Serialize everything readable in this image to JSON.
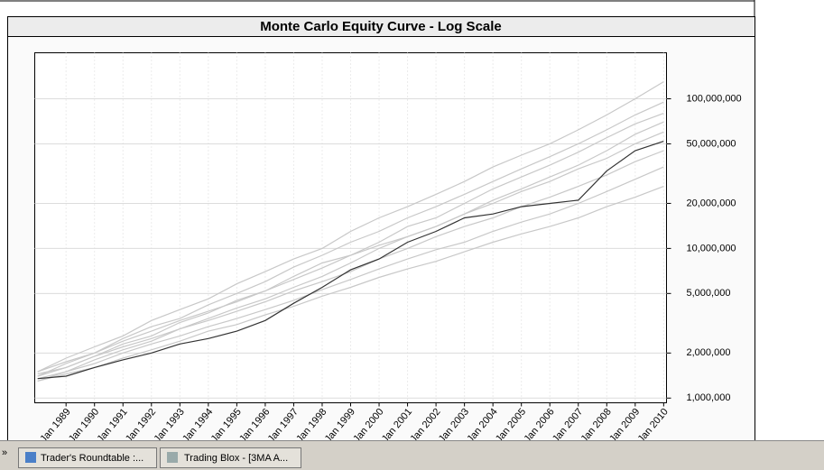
{
  "chart_data": {
    "type": "line",
    "title": "Monte Carlo Equity Curve - Log Scale",
    "log_scale": true,
    "grid": true,
    "x": [
      1988,
      1989,
      1990,
      1991,
      1992,
      1993,
      1994,
      1995,
      1996,
      1997,
      1998,
      1999,
      2000,
      2001,
      2002,
      2003,
      2004,
      2005,
      2006,
      2007,
      2008,
      2009,
      2010
    ],
    "xlim": [
      1987.9,
      2010.1
    ],
    "xticks": [
      {
        "value": 1989,
        "label": "Jan 1989"
      },
      {
        "value": 1990,
        "label": "Jan 1990"
      },
      {
        "value": 1991,
        "label": "Jan 1991"
      },
      {
        "value": 1992,
        "label": "Jan 1992"
      },
      {
        "value": 1993,
        "label": "Jan 1993"
      },
      {
        "value": 1994,
        "label": "Jan 1994"
      },
      {
        "value": 1995,
        "label": "Jan 1995"
      },
      {
        "value": 1996,
        "label": "Jan 1996"
      },
      {
        "value": 1997,
        "label": "Jan 1997"
      },
      {
        "value": 1998,
        "label": "Jan 1998"
      },
      {
        "value": 1999,
        "label": "Jan 1999"
      },
      {
        "value": 2000,
        "label": "Jan 2000"
      },
      {
        "value": 2001,
        "label": "Jan 2001"
      },
      {
        "value": 2002,
        "label": "Jan 2002"
      },
      {
        "value": 2003,
        "label": "Jan 2003"
      },
      {
        "value": 2004,
        "label": "Jan 2004"
      },
      {
        "value": 2005,
        "label": "Jan 2005"
      },
      {
        "value": 2006,
        "label": "Jan 2006"
      },
      {
        "value": 2007,
        "label": "Jan 2007"
      },
      {
        "value": 2008,
        "label": "Jan 2008"
      },
      {
        "value": 2009,
        "label": "Jan 2009"
      },
      {
        "value": 2010,
        "label": "Jan 2010"
      }
    ],
    "ylim": [
      930000,
      203000000
    ],
    "yticks": [
      {
        "value": 1000000,
        "label": "1,000,000"
      },
      {
        "value": 2000000,
        "label": "2,000,000"
      },
      {
        "value": 5000000,
        "label": "5,000,000"
      },
      {
        "value": 10000000,
        "label": "10,000,000"
      },
      {
        "value": 20000000,
        "label": "20,000,000"
      },
      {
        "value": 50000000,
        "label": "50,000,000"
      },
      {
        "value": 100000000,
        "label": "100,000,000"
      }
    ],
    "series": [
      {
        "color": "#c8c8c8",
        "values": [
          1500000,
          1850000,
          2200000,
          2600000,
          3300000,
          3900000,
          4600000,
          5800000,
          7000000,
          8500000,
          10000000,
          13000000,
          16000000,
          19000000,
          23000000,
          28000000,
          35000000,
          42000000,
          50000000,
          62000000,
          78000000,
          100000000,
          130000000
        ]
      },
      {
        "color": "#c8c8c8",
        "values": [
          1400000,
          1700000,
          2000000,
          2500000,
          3000000,
          3400000,
          4200000,
          5000000,
          6000000,
          7500000,
          9000000,
          11000000,
          13000000,
          16000000,
          19000000,
          23000000,
          28000000,
          34000000,
          41000000,
          50000000,
          62000000,
          78000000,
          95000000
        ]
      },
      {
        "color": "#c8c8c8",
        "values": [
          1450000,
          1600000,
          1900000,
          2300000,
          2600000,
          3200000,
          3700000,
          4500000,
          5200000,
          6500000,
          8000000,
          9000000,
          11000000,
          14000000,
          16000000,
          20000000,
          25000000,
          30000000,
          36000000,
          44000000,
          55000000,
          68000000,
          80000000
        ]
      },
      {
        "color": "#c8c8c8",
        "values": [
          1300000,
          1500000,
          1800000,
          2100000,
          2400000,
          2900000,
          3400000,
          4000000,
          4600000,
          5500000,
          6500000,
          8000000,
          10000000,
          12000000,
          14000000,
          17000000,
          21000000,
          25000000,
          30000000,
          36000000,
          45000000,
          58000000,
          70000000
        ]
      },
      {
        "color": "#c8c8c8",
        "values": [
          1500000,
          1750000,
          2000000,
          2400000,
          2800000,
          3300000,
          3800000,
          4400000,
          5200000,
          6200000,
          7400000,
          9000000,
          10500000,
          12000000,
          14000000,
          17000000,
          20000000,
          24000000,
          28000000,
          34000000,
          40000000,
          50000000,
          60000000
        ]
      },
      {
        "color": "#c8c8c8",
        "values": [
          1400000,
          1600000,
          1900000,
          2200000,
          2500000,
          2900000,
          3300000,
          3800000,
          4400000,
          5200000,
          6000000,
          7000000,
          8500000,
          10000000,
          12000000,
          14000000,
          16000000,
          19000000,
          22000000,
          26000000,
          31000000,
          38000000,
          45000000
        ]
      },
      {
        "color": "#c8c8c8",
        "values": [
          1350000,
          1500000,
          1700000,
          2000000,
          2300000,
          2600000,
          3000000,
          3400000,
          3900000,
          4500000,
          5300000,
          6200000,
          7300000,
          8500000,
          9800000,
          11000000,
          13000000,
          15000000,
          17000000,
          20000000,
          24000000,
          29000000,
          35000000
        ]
      },
      {
        "color": "#c8c8c8",
        "values": [
          1300000,
          1450000,
          1600000,
          1850000,
          2100000,
          2400000,
          2800000,
          3100000,
          3600000,
          4100000,
          4800000,
          5500000,
          6400000,
          7300000,
          8200000,
          9500000,
          11000000,
          12500000,
          14000000,
          16000000,
          19000000,
          22000000,
          26000000
        ]
      },
      {
        "color": "#333333",
        "values": [
          1350000,
          1400000,
          1600000,
          1800000,
          2000000,
          2300000,
          2500000,
          2800000,
          3300000,
          4300000,
          5500000,
          7200000,
          8500000,
          11000000,
          13000000,
          16000000,
          17000000,
          19000000,
          20000000,
          21000000,
          33000000,
          45000000,
          52000000
        ]
      }
    ]
  },
  "taskbar": {
    "chevron": "»",
    "items": [
      "Trader's Roundtable :...",
      "Trading Blox - [3MA A..."
    ]
  }
}
